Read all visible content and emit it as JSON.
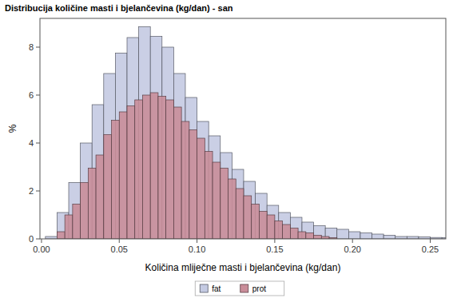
{
  "chart_data": {
    "type": "histogram",
    "title": "Distribucija količine masti i bjelančevina (kg/dan) - san",
    "x_label": "Količina mliječne masti i bjelančevina (kg/dan)",
    "y_label": "%",
    "xlim": [
      -0.001,
      0.26
    ],
    "xticks": [
      {
        "value": 0,
        "label": "0.00"
      },
      {
        "value": 0.05,
        "label": "0.05"
      },
      {
        "value": 0.1,
        "label": "0.10"
      },
      {
        "value": 0.15,
        "label": "0.15"
      },
      {
        "value": 0.2,
        "label": "0.20"
      },
      {
        "value": 0.25,
        "label": "0.25"
      }
    ],
    "ylim": [
      0,
      9.2
    ],
    "yticks": [
      0,
      2,
      4,
      6,
      8
    ],
    "grid": false,
    "legend": "bottom",
    "series": [
      {
        "name": "fat",
        "color": "#c4cae2",
        "bins": [
          0.0025,
          0.01,
          0.0175,
          0.025,
          0.0325,
          0.04,
          0.0475,
          0.055,
          0.0625,
          0.07,
          0.0775,
          0.085,
          0.0925,
          0.1,
          0.1075,
          0.115,
          0.1225,
          0.13,
          0.1375,
          0.145,
          0.1525,
          0.16,
          0.1675,
          0.175,
          0.1825,
          0.19,
          0.1975,
          0.205,
          0.2125,
          0.22,
          0.2275,
          0.235,
          0.2425,
          0.25,
          0.2575,
          0.265
        ],
        "values": [
          0.1,
          1.1,
          2.35,
          4.0,
          5.6,
          6.9,
          7.75,
          8.4,
          8.85,
          8.45,
          8.0,
          6.9,
          5.9,
          4.9,
          4.3,
          3.6,
          2.9,
          2.4,
          1.9,
          1.4,
          1.1,
          0.9,
          0.7,
          0.55,
          0.45,
          0.4,
          0.3,
          0.25,
          0.2,
          0.15,
          0.1,
          0.1,
          0.08,
          0.06,
          0.05
        ]
      },
      {
        "name": "prot",
        "color": "#c98d99",
        "bins": [
          0.01,
          0.015,
          0.02,
          0.025,
          0.03,
          0.035,
          0.04,
          0.045,
          0.05,
          0.055,
          0.06,
          0.065,
          0.07,
          0.075,
          0.08,
          0.085,
          0.09,
          0.095,
          0.1,
          0.105,
          0.11,
          0.115,
          0.12,
          0.125,
          0.13,
          0.135,
          0.14,
          0.145,
          0.15,
          0.155,
          0.16,
          0.165,
          0.17,
          0.175,
          0.18,
          0.185,
          0.19
        ],
        "values": [
          0.3,
          1.0,
          1.45,
          2.35,
          2.95,
          3.5,
          4.35,
          4.95,
          5.3,
          5.55,
          5.8,
          6.0,
          6.1,
          5.95,
          5.8,
          5.5,
          4.9,
          4.55,
          4.2,
          3.65,
          3.2,
          2.95,
          2.5,
          2.1,
          1.8,
          1.45,
          1.15,
          1.0,
          0.75,
          0.6,
          0.45,
          0.3,
          0.25,
          0.15,
          0.1,
          0.05
        ]
      }
    ]
  }
}
